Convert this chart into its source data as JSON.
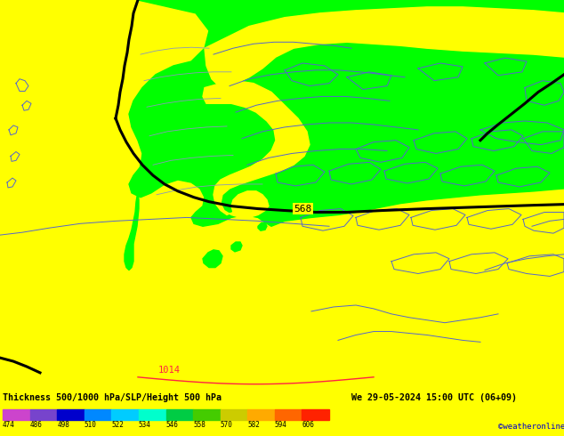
{
  "title_left": "Thickness 500/1000 hPa/SLP/Height 500 hPa",
  "title_right": "We 29-05-2024 15:00 UTC (06+09)",
  "credit": "©weatheronline.co.uk",
  "colorbar_values": [
    474,
    486,
    498,
    510,
    522,
    534,
    546,
    558,
    570,
    582,
    594,
    606
  ],
  "colorbar_colors": [
    "#cc44cc",
    "#7744cc",
    "#0000cc",
    "#0088ff",
    "#00ccff",
    "#00ffcc",
    "#00cc44",
    "#44cc00",
    "#cccc00",
    "#ffaa00",
    "#ff6600",
    "#ff2200"
  ],
  "background_color": "#ffff00",
  "green_color": "#00ff00",
  "blue_contour": "#5566cc",
  "gray_contour": "#8899bb",
  "black_line": "#000000",
  "red_contour": "#ff2244",
  "fig_width": 6.34,
  "fig_height": 4.9,
  "dpi": 100
}
